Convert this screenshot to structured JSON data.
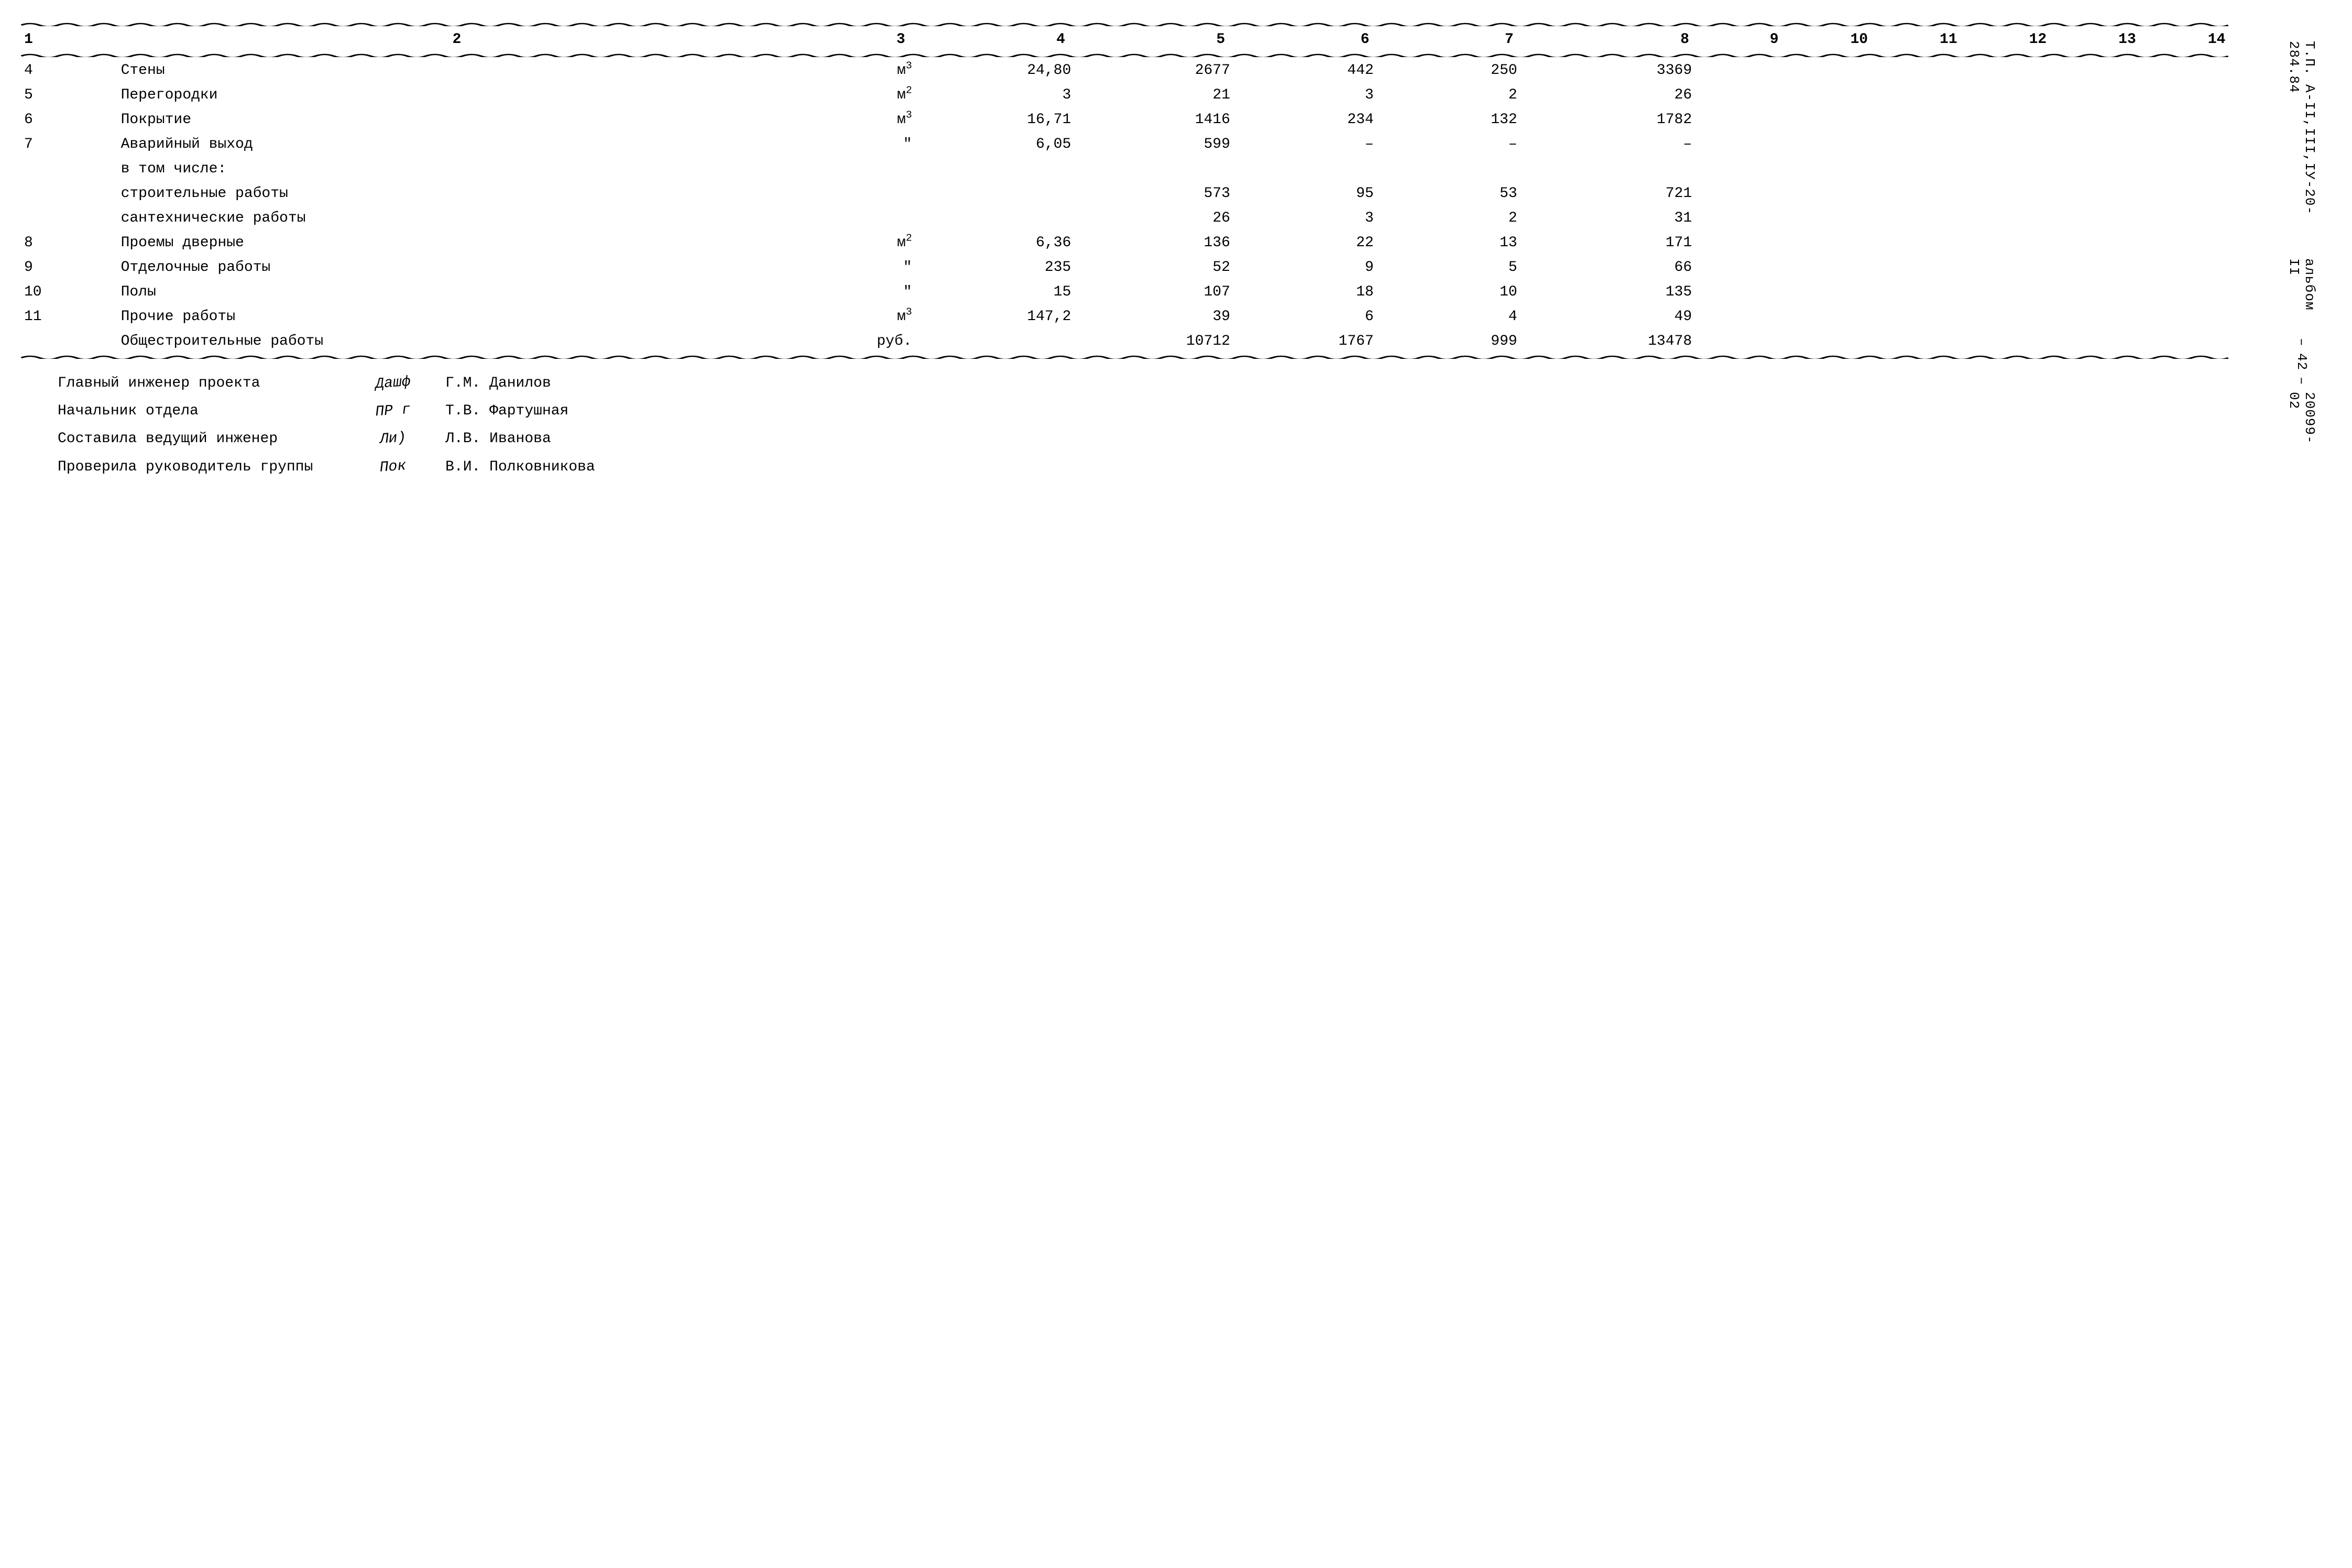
{
  "table": {
    "headers": [
      "1",
      "2",
      "3",
      "4",
      "5",
      "6",
      "7",
      "8",
      "9",
      "10",
      "11",
      "12",
      "13",
      "14"
    ],
    "rows": [
      {
        "n": "4",
        "name": "Стены",
        "unit": "м³",
        "c4": "24,80",
        "c5": "2677",
        "c6": "442",
        "c7": "250",
        "c8": "3369"
      },
      {
        "n": "5",
        "name": "Перегородки",
        "unit": "м²",
        "c4": "3",
        "c5": "21",
        "c6": "3",
        "c7": "2",
        "c8": "26"
      },
      {
        "n": "6",
        "name": "Покрытие",
        "unit": "м³",
        "c4": "16,71",
        "c5": "1416",
        "c6": "234",
        "c7": "132",
        "c8": "1782"
      },
      {
        "n": "7",
        "name": "Аварийный выход",
        "unit": "\"",
        "c4": "6,05",
        "c5": "599",
        "c6": "–",
        "c7": "–",
        "c8": "–"
      },
      {
        "n": "",
        "name": "в том числе:",
        "unit": "",
        "c4": "",
        "c5": "",
        "c6": "",
        "c7": "",
        "c8": ""
      },
      {
        "n": "",
        "name": "строительные работы",
        "unit": "",
        "c4": "",
        "c5": "573",
        "c6": "95",
        "c7": "53",
        "c8": "721"
      },
      {
        "n": "",
        "name": "сантехнические работы",
        "unit": "",
        "c4": "",
        "c5": "26",
        "c6": "3",
        "c7": "2",
        "c8": "31"
      },
      {
        "n": "8",
        "name": "Проемы дверные",
        "unit": "м²",
        "c4": "6,36",
        "c5": "136",
        "c6": "22",
        "c7": "13",
        "c8": "171"
      },
      {
        "n": "9",
        "name": "Отделочные работы",
        "unit": "\"",
        "c4": "235",
        "c5": "52",
        "c6": "9",
        "c7": "5",
        "c8": "66"
      },
      {
        "n": "10",
        "name": "Полы",
        "unit": "\"",
        "c4": "15",
        "c5": "107",
        "c6": "18",
        "c7": "10",
        "c8": "135"
      },
      {
        "n": "11",
        "name": "Прочие работы",
        "unit": "м³",
        "c4": "147,2",
        "c5": "39",
        "c6": "6",
        "c7": "4",
        "c8": "49"
      },
      {
        "n": "",
        "name": "Общестроительные работы",
        "unit": "руб.",
        "c4": "",
        "c5": "10712",
        "c6": "1767",
        "c7": "999",
        "c8": "13478"
      }
    ]
  },
  "signatures": [
    {
      "role": "Главный инженер проекта",
      "mark": "Дашф",
      "name": "Г.М. Данилов"
    },
    {
      "role": "Начальник отдела",
      "mark": "ПР г",
      "name": "Т.В. Фартушная"
    },
    {
      "role": "Составила ведущий инженер",
      "mark": "Ли)",
      "name": "Л.В. Иванова"
    },
    {
      "role": "Проверила руководитель группы",
      "mark": "Пок",
      "name": "В.И. Полковникова"
    }
  ],
  "side": {
    "line1": "Т.П. А-II,III,IУ-20-284.84",
    "line2": "альбом II",
    "dash1": "–",
    "page": "42",
    "dash2": "–",
    "code": "20099-02"
  },
  "unit_labels": {
    "m3": "м",
    "exp3": "3",
    "m2": "м",
    "exp2": "2",
    "ditto": "\"",
    "rub": "руб."
  }
}
